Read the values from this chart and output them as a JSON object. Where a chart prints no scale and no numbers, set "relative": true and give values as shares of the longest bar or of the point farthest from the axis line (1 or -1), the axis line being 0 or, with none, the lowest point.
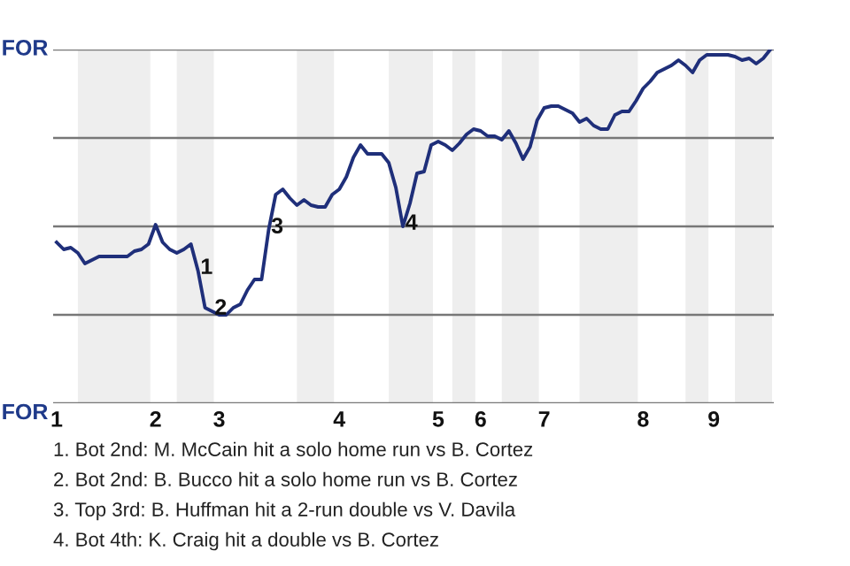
{
  "chart_data": {
    "type": "line",
    "relative": true,
    "categories": [
      "1",
      null,
      null,
      null,
      null,
      null,
      null,
      null,
      null,
      null,
      null,
      null,
      null,
      null,
      "2",
      null,
      null,
      null,
      null,
      null,
      null,
      null,
      null,
      "3",
      null,
      null,
      null,
      null,
      null,
      null,
      null,
      null,
      null,
      null,
      null,
      null,
      null,
      null,
      null,
      null,
      "4",
      null,
      null,
      null,
      null,
      null,
      null,
      null,
      null,
      null,
      null,
      null,
      null,
      null,
      "5",
      null,
      null,
      null,
      null,
      null,
      "6",
      null,
      null,
      null,
      null,
      null,
      null,
      null,
      null,
      "7",
      null,
      null,
      null,
      null,
      null,
      null,
      null,
      null,
      null,
      null,
      null,
      null,
      null,
      "8",
      null,
      null,
      null,
      null,
      null,
      null,
      null,
      null,
      null,
      "9",
      null,
      null,
      null,
      null,
      null,
      null,
      null,
      null
    ],
    "series": [
      {
        "color": "#1f2f7a",
        "values": [
          0.455,
          0.435,
          0.44,
          0.425,
          0.395,
          0.405,
          0.415,
          0.415,
          0.415,
          0.415,
          0.415,
          0.43,
          0.435,
          0.45,
          0.505,
          0.455,
          0.435,
          0.425,
          0.435,
          0.45,
          0.375,
          0.27,
          0.26,
          0.25,
          0.25,
          0.27,
          0.28,
          0.32,
          0.35,
          0.35,
          0.49,
          0.59,
          0.605,
          0.58,
          0.56,
          0.575,
          0.56,
          0.555,
          0.555,
          0.59,
          0.605,
          0.64,
          0.695,
          0.73,
          0.705,
          0.705,
          0.705,
          0.68,
          0.61,
          0.5,
          0.565,
          0.65,
          0.655,
          0.73,
          0.74,
          0.73,
          0.715,
          0.735,
          0.76,
          0.775,
          0.77,
          0.755,
          0.755,
          0.745,
          0.77,
          0.735,
          0.69,
          0.725,
          0.8,
          0.835,
          0.84,
          0.84,
          0.83,
          0.82,
          0.795,
          0.805,
          0.785,
          0.775,
          0.775,
          0.815,
          0.825,
          0.825,
          0.855,
          0.89,
          0.91,
          0.935,
          0.945,
          0.955,
          0.97,
          0.955,
          0.935,
          0.97,
          0.985,
          0.985,
          0.985,
          0.985,
          0.98,
          0.97,
          0.975,
          0.96,
          0.975,
          1
        ],
        "name": null
      }
    ],
    "legend": false,
    "marker": "none",
    "line_style": "solid",
    "ref_lines": [
      {
        "axis": "y",
        "value": 0,
        "label": "FOR",
        "color": "#777777"
      },
      {
        "axis": "y",
        "value": 0.25,
        "color": "#777777"
      },
      {
        "axis": "y",
        "value": 0.5,
        "color": "#777777"
      },
      {
        "axis": "y",
        "value": 0.75,
        "color": "#777777"
      },
      {
        "axis": "y",
        "value": 1,
        "label": "FOR",
        "color": "#777777"
      }
    ],
    "annotations": [
      {
        "text": "1",
        "y": 0.375
      },
      {
        "text": "2",
        "y": 0.26
      },
      {
        "text": "3",
        "y": 0.49
      },
      {
        "text": "4",
        "y": 0.5
      },
      "1. Bot 2nd: M. McCain hit a solo home run vs B. Cortez",
      "2. Bot 2nd: B. Bucco hit a solo home run vs B. Cortez",
      "3. Top 3rd: B. Huffman hit a 2-run double vs V. Davila",
      "4. Bot 4th: K. Craig hit a double vs B. Cortez"
    ]
  }
}
